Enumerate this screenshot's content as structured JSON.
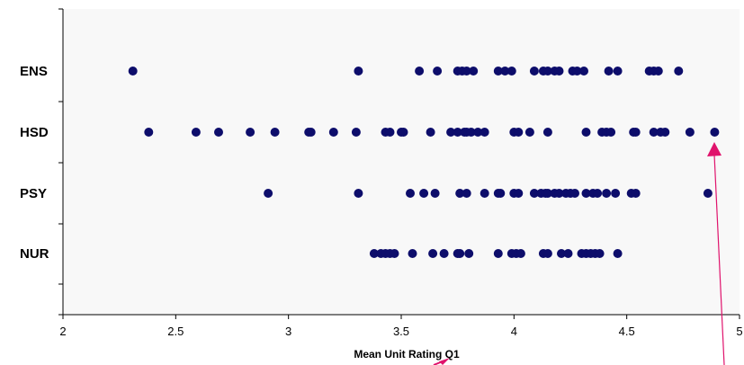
{
  "chart_data": {
    "type": "scatter",
    "title": "",
    "xlabel": "Mean Unit Rating Q1",
    "ylabel": "",
    "xlim": [
      2,
      5
    ],
    "xticks": [
      "2",
      "2.5",
      "3",
      "3.5",
      "4",
      "4.5",
      "5"
    ],
    "categories": [
      "ENS",
      "HSD",
      "PSY",
      "NUR"
    ],
    "marker_color": "#0d0d6b",
    "grid": false,
    "series": [
      {
        "category": "ENS",
        "x": [
          2.31,
          3.31,
          3.58,
          3.66,
          3.75,
          3.77,
          3.79,
          3.82,
          3.93,
          3.96,
          3.99,
          4.09,
          4.13,
          4.15,
          4.18,
          4.2,
          4.26,
          4.28,
          4.31,
          4.42,
          4.46,
          4.6,
          4.62,
          4.64,
          4.73
        ]
      },
      {
        "category": "HSD",
        "x": [
          2.38,
          2.59,
          2.69,
          2.83,
          2.94,
          3.09,
          3.1,
          3.2,
          3.3,
          3.43,
          3.45,
          3.5,
          3.51,
          3.63,
          3.72,
          3.75,
          3.78,
          3.79,
          3.81,
          3.84,
          3.87,
          4.0,
          4.02,
          4.07,
          4.15,
          4.32,
          4.39,
          4.41,
          4.43,
          4.53,
          4.54,
          4.62,
          4.65,
          4.67,
          4.78,
          4.89
        ]
      },
      {
        "category": "PSY",
        "x": [
          2.91,
          3.31,
          3.54,
          3.6,
          3.65,
          3.76,
          3.79,
          3.87,
          3.93,
          3.94,
          4.0,
          4.02,
          4.09,
          4.12,
          4.14,
          4.15,
          4.18,
          4.2,
          4.23,
          4.25,
          4.27,
          4.32,
          4.35,
          4.37,
          4.41,
          4.45,
          4.52,
          4.54,
          4.86
        ]
      },
      {
        "category": "NUR",
        "x": [
          3.38,
          3.41,
          3.43,
          3.45,
          3.47,
          3.55,
          3.64,
          3.69,
          3.75,
          3.76,
          3.8,
          3.93,
          3.99,
          4.01,
          4.03,
          4.13,
          4.15,
          4.21,
          4.24,
          4.3,
          4.32,
          4.34,
          4.36,
          4.38,
          4.46
        ]
      }
    ]
  }
}
